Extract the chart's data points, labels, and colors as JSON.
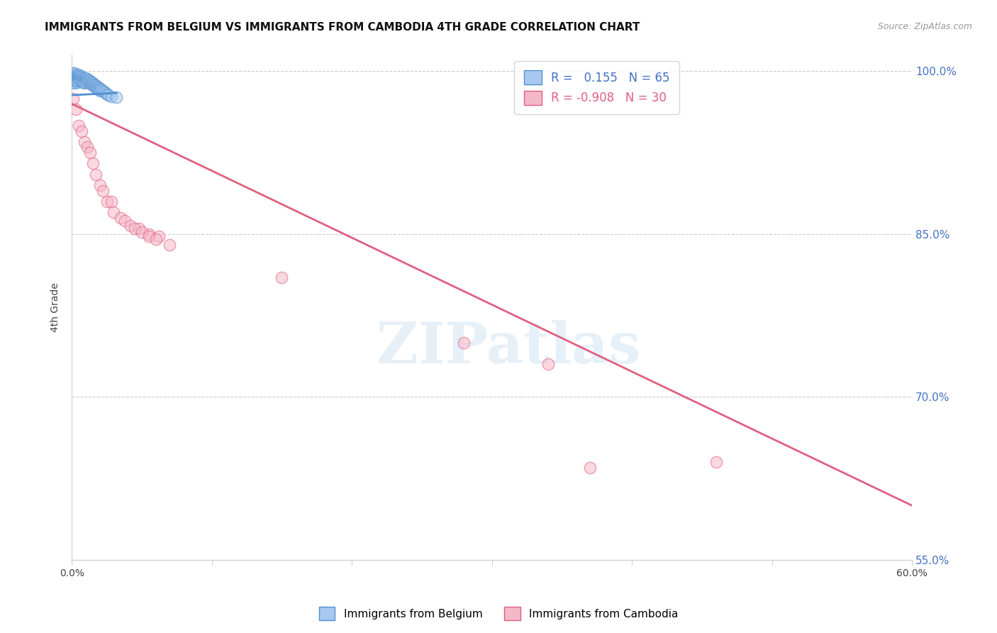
{
  "title": "IMMIGRANTS FROM BELGIUM VS IMMIGRANTS FROM CAMBODIA 4TH GRADE CORRELATION CHART",
  "source_text": "Source: ZipAtlas.com",
  "ylabel": "4th Grade",
  "watermark": "ZIPatlas",
  "xlim": [
    0.0,
    0.6
  ],
  "ylim": [
    0.58,
    1.015
  ],
  "xticks": [
    0.0,
    0.1,
    0.2,
    0.3,
    0.4,
    0.5,
    0.6
  ],
  "xticklabels": [
    "0.0%",
    "",
    "",
    "",
    "",
    "",
    "60.0%"
  ],
  "ytick_positions": [
    1.0,
    0.85,
    0.7,
    0.55
  ],
  "ytick_labels": [
    "100.0%",
    "85.0%",
    "70.0%",
    "55.0%"
  ],
  "blue_R": 0.155,
  "blue_N": 65,
  "pink_R": -0.908,
  "pink_N": 30,
  "blue_color": "#a8c8f0",
  "blue_edge_color": "#5090d0",
  "pink_color": "#f5b8c8",
  "pink_edge_color": "#e06080",
  "legend_label_blue": "Immigrants from Belgium",
  "legend_label_pink": "Immigrants from Cambodia",
  "blue_scatter_x": [
    0.001,
    0.001,
    0.001,
    0.001,
    0.001,
    0.002,
    0.002,
    0.002,
    0.002,
    0.002,
    0.003,
    0.003,
    0.003,
    0.003,
    0.004,
    0.004,
    0.004,
    0.004,
    0.005,
    0.005,
    0.005,
    0.005,
    0.006,
    0.006,
    0.006,
    0.007,
    0.007,
    0.007,
    0.008,
    0.008,
    0.008,
    0.009,
    0.009,
    0.009,
    0.01,
    0.01,
    0.01,
    0.011,
    0.011,
    0.012,
    0.012,
    0.013,
    0.013,
    0.014,
    0.014,
    0.015,
    0.015,
    0.016,
    0.016,
    0.017,
    0.017,
    0.018,
    0.018,
    0.019,
    0.019,
    0.02,
    0.02,
    0.021,
    0.022,
    0.023,
    0.024,
    0.025,
    0.026,
    0.028,
    0.032
  ],
  "blue_scatter_y": [
    0.998,
    0.996,
    0.994,
    0.992,
    0.99,
    0.998,
    0.995,
    0.993,
    0.991,
    0.989,
    0.997,
    0.995,
    0.993,
    0.991,
    0.996,
    0.994,
    0.992,
    0.99,
    0.997,
    0.995,
    0.993,
    0.991,
    0.996,
    0.994,
    0.992,
    0.995,
    0.993,
    0.991,
    0.994,
    0.992,
    0.99,
    0.993,
    0.991,
    0.989,
    0.994,
    0.992,
    0.99,
    0.993,
    0.991,
    0.992,
    0.99,
    0.991,
    0.989,
    0.99,
    0.988,
    0.989,
    0.987,
    0.988,
    0.986,
    0.987,
    0.985,
    0.986,
    0.984,
    0.985,
    0.983,
    0.984,
    0.982,
    0.983,
    0.982,
    0.981,
    0.98,
    0.979,
    0.978,
    0.977,
    0.976
  ],
  "pink_scatter_x": [
    0.001,
    0.003,
    0.005,
    0.007,
    0.009,
    0.011,
    0.013,
    0.015,
    0.017,
    0.02,
    0.022,
    0.025,
    0.028,
    0.03,
    0.035,
    0.038,
    0.042,
    0.048,
    0.055,
    0.062,
    0.045,
    0.05,
    0.055,
    0.06,
    0.07,
    0.15,
    0.28,
    0.34,
    0.46,
    0.37
  ],
  "pink_scatter_y": [
    0.975,
    0.965,
    0.95,
    0.945,
    0.935,
    0.93,
    0.925,
    0.915,
    0.905,
    0.895,
    0.89,
    0.88,
    0.88,
    0.87,
    0.865,
    0.862,
    0.858,
    0.855,
    0.85,
    0.848,
    0.855,
    0.852,
    0.848,
    0.845,
    0.84,
    0.81,
    0.75,
    0.73,
    0.64,
    0.635
  ],
  "blue_trend_x": [
    0.0,
    0.032
  ],
  "blue_trend_y": [
    0.978,
    0.98
  ],
  "pink_trend_x": [
    0.0,
    0.6
  ],
  "pink_trend_y": [
    0.97,
    0.6
  ],
  "background_color": "#ffffff",
  "title_fontsize": 11,
  "right_tick_color": "#4472c4",
  "grid_color": "#cccccc",
  "source_color": "#999999"
}
